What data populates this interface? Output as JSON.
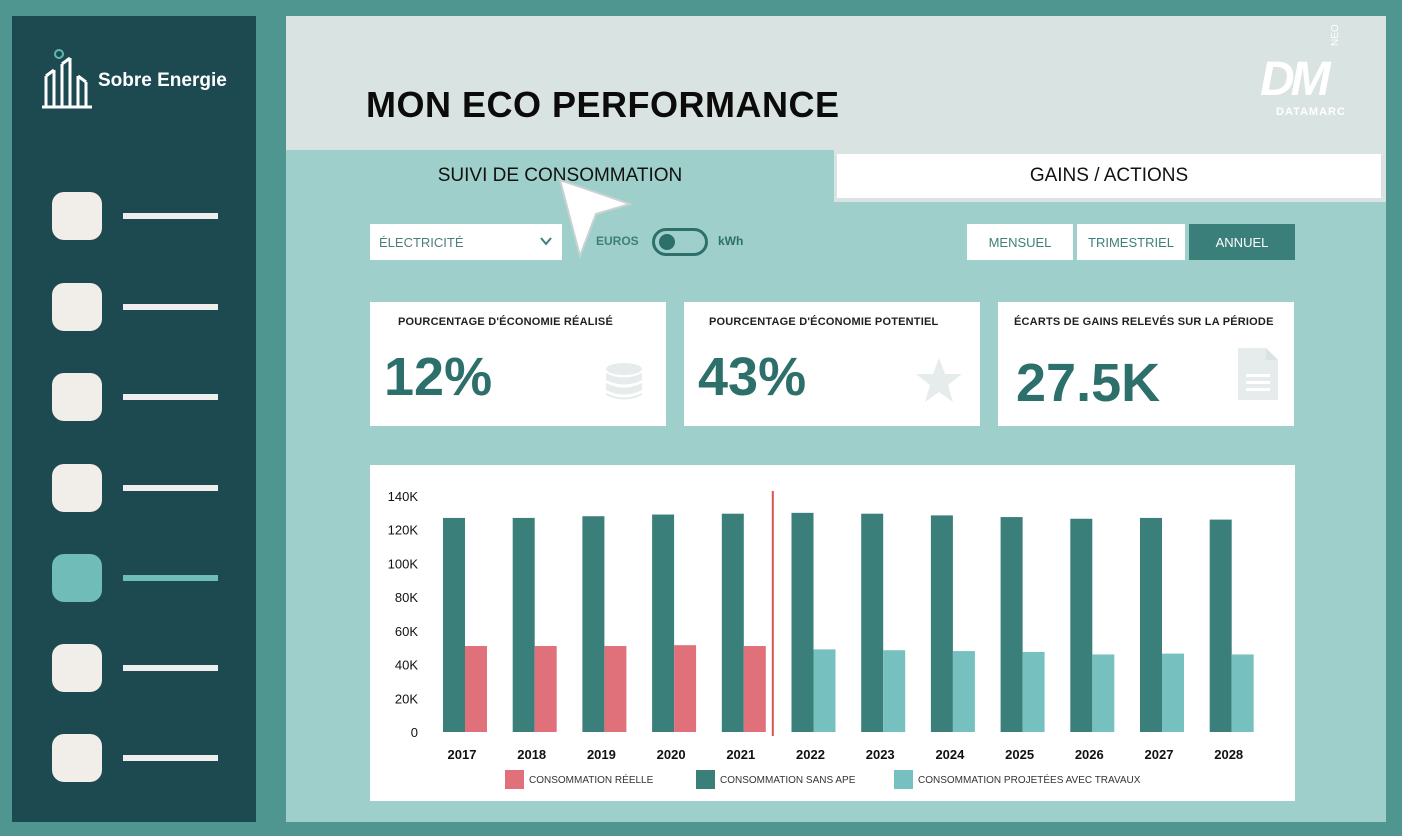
{
  "brand": {
    "name": "Sobre Energie"
  },
  "sidebar": {
    "items": [
      {
        "id": "1",
        "active": false
      },
      {
        "id": "2",
        "active": false
      },
      {
        "id": "3",
        "active": false
      },
      {
        "id": "4",
        "active": false
      },
      {
        "id": "5",
        "active": true
      },
      {
        "id": "6",
        "active": false
      },
      {
        "id": "7",
        "active": false
      }
    ]
  },
  "header": {
    "title": "MON ECO PERFORMANCE",
    "logo": {
      "letters": "DM",
      "neo": "NEO",
      "name": "DATAMARC"
    }
  },
  "tabs": [
    {
      "label": "SUIVI DE CONSOMMATION",
      "active": true
    },
    {
      "label": "GAINS / ACTIONS",
      "active": false
    }
  ],
  "controls": {
    "energy_select": "ÉLECTRICITÉ",
    "toggle_left": "EUROS",
    "toggle_right": "kWh",
    "periods": [
      "MENSUEL",
      "TRIMESTRIEL",
      "ANNUEL"
    ],
    "selected_period": "ANNUEL"
  },
  "kpis": [
    {
      "title": "POURCENTAGE D'ÉCONOMIE RÉALISÉ",
      "value": "12%",
      "icon": "database-icon"
    },
    {
      "title": "POURCENTAGE D'ÉCONOMIE POTENTIEL",
      "value": "43%",
      "icon": "star-icon"
    },
    {
      "title": "ÉCARTS DE GAINS RELEVÉS SUR LA PÉRIODE",
      "value": "27.5K",
      "icon": "document-icon"
    }
  ],
  "colors": {
    "sidebar": "#1d4a50",
    "accent": "#2d6f6a",
    "bar_sans_ape": "#3a7f79",
    "bar_reelle": "#e0717a",
    "bar_projetee": "#76c1bf",
    "divider": "#d9534f"
  },
  "chart_data": {
    "type": "bar",
    "categories": [
      "2017",
      "2018",
      "2019",
      "2020",
      "2021",
      "2022",
      "2023",
      "2024",
      "2025",
      "2026",
      "2027",
      "2028"
    ],
    "y_ticks": [
      "0",
      "20K",
      "40K",
      "60K",
      "80K",
      "100K",
      "120K",
      "140K"
    ],
    "ylim": [
      0,
      140000
    ],
    "divider_after": "2021",
    "series": [
      {
        "name": "CONSOMMATION RÉELLE",
        "color": "#e0717a",
        "values": [
          51000,
          51000,
          51000,
          51500,
          51000,
          null,
          null,
          null,
          null,
          null,
          null,
          null
        ]
      },
      {
        "name": "CONSOMMATION SANS APE",
        "color": "#3a7f79",
        "values": [
          127000,
          127000,
          128000,
          129000,
          129500,
          130000,
          129500,
          128500,
          127500,
          126500,
          127000,
          126000
        ]
      },
      {
        "name": "CONSOMMATION PROJETÉES AVEC TRAVAUX",
        "color": "#76c1bf",
        "values": [
          null,
          null,
          null,
          null,
          null,
          49000,
          48500,
          48000,
          47500,
          46000,
          46500,
          46000
        ]
      }
    ],
    "legend_position": "bottom"
  }
}
